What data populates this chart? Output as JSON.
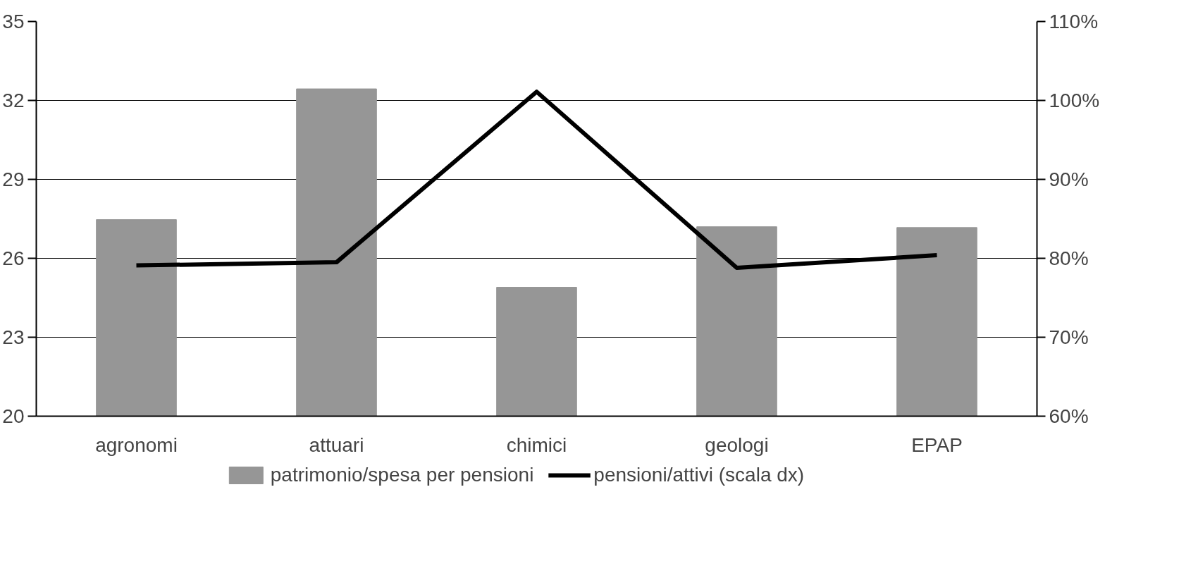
{
  "chart_data": {
    "type": "bar",
    "categories": [
      "agronomi",
      "attuari",
      "chimici",
      "geologi",
      "EPAP"
    ],
    "series": [
      {
        "name": "patrimonio/spesa per pensioni",
        "color": "#969696",
        "values": [
          27.47,
          32.44,
          24.9,
          27.2,
          27.17
        ]
      },
      {
        "name": "pensioni/attivi (scala dx)",
        "type": "line",
        "axis": "y2",
        "color": "#000000",
        "values": [
          79.1,
          79.5,
          101.1,
          78.8,
          80.4
        ]
      }
    ],
    "ylim": [
      20,
      35
    ],
    "yticks": [
      20,
      23,
      26,
      29,
      32,
      35
    ],
    "y2lim": [
      60,
      110
    ],
    "y2ticks": [
      {
        "value": 60,
        "label": "60%"
      },
      {
        "value": 70,
        "label": "70%"
      },
      {
        "value": 80,
        "label": "80%"
      },
      {
        "value": 90,
        "label": "90%"
      },
      {
        "value": 100,
        "label": "100%"
      },
      {
        "value": 110,
        "label": "110%"
      }
    ],
    "grid": "y",
    "legend": "bottom",
    "line_style": "solid",
    "marker": "none"
  }
}
